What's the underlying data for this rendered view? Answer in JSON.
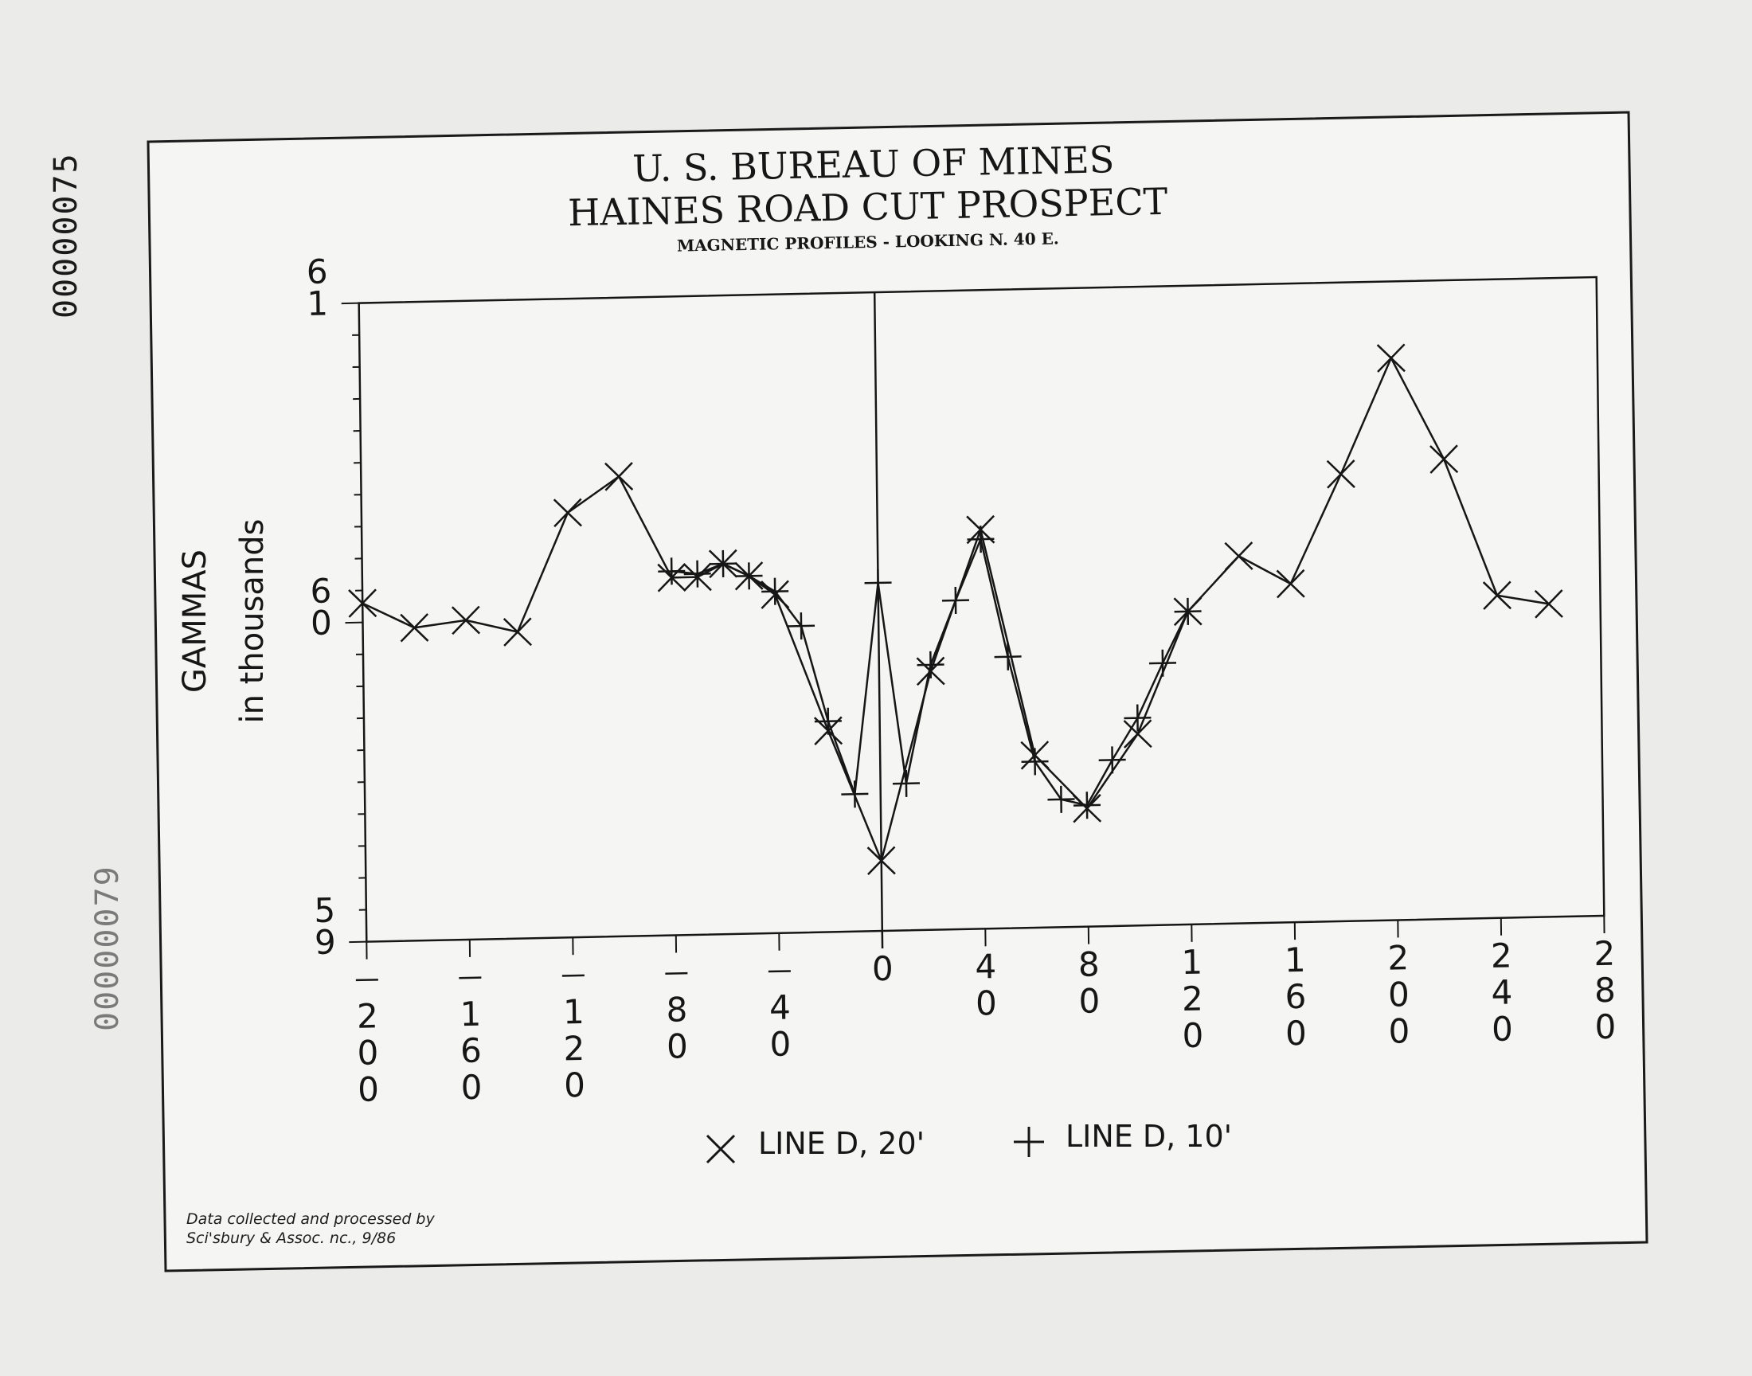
{
  "document": {
    "stamp_top": "00000075",
    "stamp_bottom": "00000079"
  },
  "chart_data": {
    "type": "line",
    "title": "U. S. BUREAU OF MINES",
    "title2": "HAINES ROAD CUT PROSPECT",
    "subtitle": "MAGNETIC PROFILES - LOOKING N. 40 E.",
    "xlabel": "",
    "ylabel": "GAMMAS",
    "ylabel2": "in thousands",
    "xlim": [
      -200,
      280
    ],
    "ylim": [
      59,
      61
    ],
    "xticks": [
      -200,
      -160,
      -120,
      -80,
      -40,
      0,
      40,
      80,
      120,
      160,
      200,
      240,
      280
    ],
    "xtick_labels": [
      "-200",
      "-160",
      "-120",
      "-80",
      "-40",
      "0",
      "40",
      "80",
      "120",
      "160",
      "200",
      "240",
      "280"
    ],
    "yticks": [
      59,
      60,
      61
    ],
    "ytick_labels": [
      "59",
      "60",
      "61"
    ],
    "legend_position": "bottom-center",
    "grid": false,
    "series": [
      {
        "name": "LINE D, 20'",
        "marker": "x",
        "x": [
          -200,
          -180,
          -160,
          -140,
          -120,
          -100,
          -80,
          -70,
          -60,
          -50,
          -40,
          -20,
          0,
          20,
          40,
          60,
          80,
          100,
          120,
          140,
          160,
          180,
          200,
          220,
          240,
          260
        ],
        "y": [
          60.06,
          59.98,
          60.0,
          59.96,
          60.33,
          60.44,
          60.12,
          60.12,
          60.16,
          60.12,
          60.06,
          59.63,
          59.22,
          59.81,
          60.25,
          59.54,
          59.37,
          59.6,
          59.98,
          60.15,
          60.06,
          60.4,
          60.76,
          60.44,
          60.01,
          59.98
        ]
      },
      {
        "name": "LINE D, 10'",
        "marker": "+",
        "x": [
          -80,
          -70,
          -60,
          -50,
          -40,
          -30,
          -20,
          -10,
          0,
          10,
          20,
          30,
          40,
          50,
          60,
          70,
          80,
          90,
          100,
          110,
          120
        ],
        "y": [
          60.14,
          60.13,
          60.16,
          60.12,
          60.07,
          59.96,
          59.66,
          59.43,
          60.09,
          59.46,
          59.83,
          60.03,
          60.22,
          59.85,
          59.52,
          59.4,
          59.38,
          59.52,
          59.65,
          59.82,
          59.98
        ]
      }
    ]
  },
  "credit": {
    "line1": "Data collected and processed by",
    "line2": "Sci'sbury & Assoc. nc., 9/86"
  }
}
